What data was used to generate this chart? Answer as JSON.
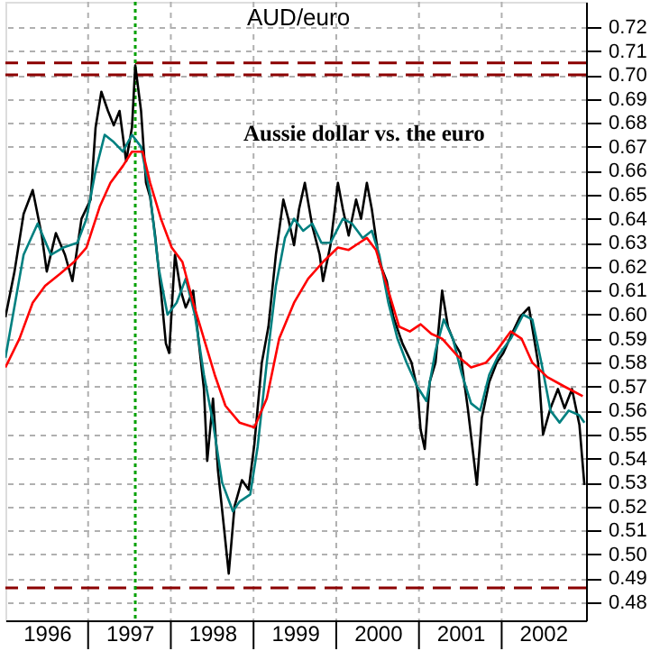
{
  "chart_data": {
    "type": "line",
    "title": "AUD/euro",
    "annotations": [
      "Aussie dollar vs. the euro"
    ],
    "xlim": [
      1996.0,
      2003.02
    ],
    "xticks": [
      {
        "value": 1996.5,
        "label": "1996"
      },
      {
        "value": 1997,
        "label": null
      },
      {
        "value": 1997.5,
        "label": "1997"
      },
      {
        "value": 1998,
        "label": null
      },
      {
        "value": 1998.5,
        "label": "1998"
      },
      {
        "value": 1999,
        "label": null
      },
      {
        "value": 1999.5,
        "label": "1999"
      },
      {
        "value": 2000,
        "label": null
      },
      {
        "value": 2000.5,
        "label": "2000"
      },
      {
        "value": 2001,
        "label": null
      },
      {
        "value": 2001.5,
        "label": "2001"
      },
      {
        "value": 2002,
        "label": null
      },
      {
        "value": 2002.5,
        "label": "2002"
      }
    ],
    "ylim": [
      0.4725,
      0.7305
    ],
    "yticks": [
      0.48,
      0.49,
      {
        "value": 0.5,
        "label": "0.50"
      },
      0.51,
      0.52,
      0.53,
      0.54,
      0.55,
      0.56,
      0.57,
      0.58,
      0.59,
      {
        "value": 0.6,
        "label": "0.60"
      },
      0.61,
      0.62,
      0.63,
      0.64,
      0.65,
      0.66,
      0.67,
      0.68,
      0.69,
      {
        "value": 0.7,
        "label": "0.70"
      },
      0.71,
      0.72
    ],
    "grid": true,
    "series": [
      {
        "color": "#000000",
        "x": [
          1996.0,
          1996.11,
          1996.22,
          1996.33,
          1996.44,
          1996.5,
          1996.61,
          1996.72,
          1996.81,
          1996.92,
          1997.03,
          1997.09,
          1997.16,
          1997.24,
          1997.31,
          1997.38,
          1997.46,
          1997.53,
          1997.57,
          1997.64,
          1997.7,
          1997.75,
          1997.81,
          1997.88,
          1997.94,
          1997.98,
          1998.05,
          1998.12,
          1998.18,
          1998.27,
          1998.33,
          1998.4,
          1998.44,
          1998.51,
          1998.57,
          1998.64,
          1998.7,
          1998.77,
          1998.86,
          1998.94,
          1999.01,
          1999.1,
          1999.18,
          1999.27,
          1999.36,
          1999.42,
          1999.49,
          1999.55,
          1999.62,
          1999.71,
          1999.8,
          1999.84,
          1999.93,
          2000.02,
          2000.08,
          2000.15,
          2000.24,
          2000.3,
          2000.37,
          2000.43,
          2000.52,
          2000.61,
          2000.69,
          2000.8,
          2000.91,
          2000.98,
          2001.02,
          2001.07,
          2001.13,
          2001.2,
          2001.28,
          2001.35,
          2001.43,
          2001.5,
          2001.59,
          2001.7,
          2001.76,
          2001.85,
          2001.94,
          2002.02,
          2002.11,
          2002.22,
          2002.33,
          2002.44,
          2002.5,
          2002.59,
          2002.68,
          2002.76,
          2002.85,
          2002.94,
          2003.0
        ],
        "values": [
          0.599,
          0.618,
          0.642,
          0.652,
          0.633,
          0.618,
          0.634,
          0.625,
          0.614,
          0.64,
          0.648,
          0.678,
          0.693,
          0.685,
          0.679,
          0.685,
          0.664,
          0.678,
          0.704,
          0.685,
          0.655,
          0.649,
          0.633,
          0.61,
          0.588,
          0.584,
          0.625,
          0.61,
          0.603,
          0.61,
          0.591,
          0.569,
          0.539,
          0.565,
          0.535,
          0.512,
          0.492,
          0.52,
          0.531,
          0.527,
          0.546,
          0.58,
          0.595,
          0.625,
          0.648,
          0.64,
          0.629,
          0.644,
          0.655,
          0.637,
          0.625,
          0.614,
          0.629,
          0.655,
          0.644,
          0.633,
          0.648,
          0.64,
          0.655,
          0.644,
          0.622,
          0.614,
          0.599,
          0.588,
          0.58,
          0.569,
          0.552,
          0.544,
          0.572,
          0.58,
          0.61,
          0.595,
          0.588,
          0.584,
          0.561,
          0.529,
          0.557,
          0.572,
          0.58,
          0.584,
          0.591,
          0.599,
          0.603,
          0.58,
          0.55,
          0.561,
          0.569,
          0.561,
          0.569,
          0.554,
          0.529
        ]
      },
      {
        "color": "#008080",
        "x": [
          1996.0,
          1996.22,
          1996.39,
          1996.55,
          1996.7,
          1996.87,
          1996.98,
          1997.09,
          1997.2,
          1997.31,
          1997.42,
          1997.53,
          1997.64,
          1997.75,
          1997.85,
          1997.96,
          1998.07,
          1998.18,
          1998.29,
          1998.4,
          1998.51,
          1998.62,
          1998.75,
          1998.83,
          1998.96,
          1999.05,
          1999.16,
          1999.27,
          1999.38,
          1999.49,
          1999.6,
          1999.71,
          1999.82,
          1999.93,
          2000.08,
          2000.19,
          2000.32,
          2000.43,
          2000.52,
          2000.63,
          2000.74,
          2000.85,
          2000.98,
          2001.09,
          2001.2,
          2001.3,
          2001.41,
          2001.52,
          2001.63,
          2001.74,
          2001.85,
          2001.96,
          2002.11,
          2002.26,
          2002.37,
          2002.48,
          2002.59,
          2002.7,
          2002.81,
          2002.94,
          2003.0
        ],
        "values": [
          0.582,
          0.625,
          0.638,
          0.625,
          0.628,
          0.63,
          0.64,
          0.66,
          0.675,
          0.672,
          0.668,
          0.675,
          0.67,
          0.65,
          0.62,
          0.6,
          0.605,
          0.615,
          0.6,
          0.575,
          0.555,
          0.53,
          0.518,
          0.522,
          0.525,
          0.545,
          0.58,
          0.612,
          0.632,
          0.64,
          0.635,
          0.638,
          0.63,
          0.63,
          0.64,
          0.638,
          0.632,
          0.635,
          0.625,
          0.605,
          0.59,
          0.58,
          0.57,
          0.564,
          0.585,
          0.598,
          0.59,
          0.575,
          0.563,
          0.56,
          0.575,
          0.583,
          0.59,
          0.6,
          0.598,
          0.58,
          0.56,
          0.555,
          0.56,
          0.558,
          0.555
        ]
      },
      {
        "color": "#ff0000",
        "x": [
          1996.0,
          1996.17,
          1996.33,
          1996.48,
          1996.66,
          1996.83,
          1996.98,
          1997.14,
          1997.27,
          1997.42,
          1997.53,
          1997.66,
          1997.75,
          1997.88,
          1998.01,
          1998.14,
          1998.27,
          1998.4,
          1998.53,
          1998.66,
          1998.83,
          1999.01,
          1999.16,
          1999.31,
          1999.49,
          1999.66,
          1999.84,
          2000.02,
          2000.15,
          2000.28,
          2000.37,
          2000.48,
          2000.63,
          2000.76,
          2000.89,
          2001.02,
          2001.15,
          2001.28,
          2001.46,
          2001.63,
          2001.81,
          2001.94,
          2002.11,
          2002.24,
          2002.37,
          2002.55,
          2002.76,
          2002.98
        ],
        "values": [
          0.578,
          0.59,
          0.605,
          0.612,
          0.617,
          0.622,
          0.628,
          0.645,
          0.655,
          0.662,
          0.668,
          0.668,
          0.655,
          0.64,
          0.628,
          0.622,
          0.605,
          0.59,
          0.575,
          0.562,
          0.555,
          0.553,
          0.565,
          0.59,
          0.605,
          0.615,
          0.622,
          0.628,
          0.627,
          0.63,
          0.632,
          0.627,
          0.61,
          0.595,
          0.593,
          0.596,
          0.592,
          0.59,
          0.583,
          0.578,
          0.58,
          0.585,
          0.593,
          0.59,
          0.58,
          0.574,
          0.57,
          0.566
        ]
      }
    ],
    "ref_lines": [
      {
        "axis": "y",
        "value": 0.705,
        "color": "#8b0000",
        "line_style": "dashed"
      },
      {
        "axis": "y",
        "value": 0.7,
        "color": "#8b0000",
        "line_style": "dashed"
      },
      {
        "axis": "y",
        "value": 0.486,
        "color": "#8b0000",
        "line_style": "dashed"
      },
      {
        "axis": "x",
        "value": 1997.57,
        "color": "#00a000",
        "line_style": "dotted"
      }
    ]
  }
}
